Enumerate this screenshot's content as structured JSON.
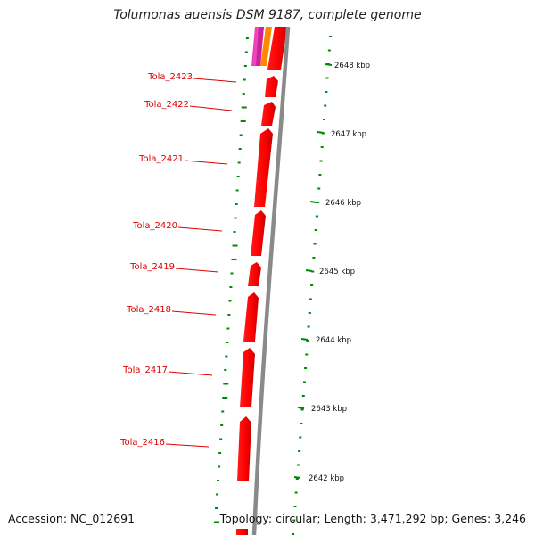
{
  "title": "Tolumonas auensis DSM 9187, complete genome",
  "footer": {
    "accession": "Accession: NC_012691",
    "summary": "Topology: circular; Length: 3,471,292 bp; Genes: 3,246"
  },
  "genes": [
    {
      "locus": "Tola_2423"
    },
    {
      "locus": "Tola_2422"
    },
    {
      "locus": "Tola_2421"
    },
    {
      "locus": "Tola_2420"
    },
    {
      "locus": "Tola_2419"
    },
    {
      "locus": "Tola_2418"
    },
    {
      "locus": "Tola_2417"
    },
    {
      "locus": "Tola_2416"
    }
  ],
  "ruler": [
    {
      "label": "2648 kbp"
    },
    {
      "label": "2647 kbp"
    },
    {
      "label": "2646 kbp"
    },
    {
      "label": "2645 kbp"
    },
    {
      "label": "2644 kbp"
    },
    {
      "label": "2643 kbp"
    },
    {
      "label": "2642 kbp"
    }
  ],
  "colors": {
    "gene": "#ff0000",
    "gene_label": "#dd0000",
    "backbone": "#888888",
    "gc_skew": "#008800",
    "pink_track": "#ee44bb",
    "orange_track": "#ff8800"
  }
}
